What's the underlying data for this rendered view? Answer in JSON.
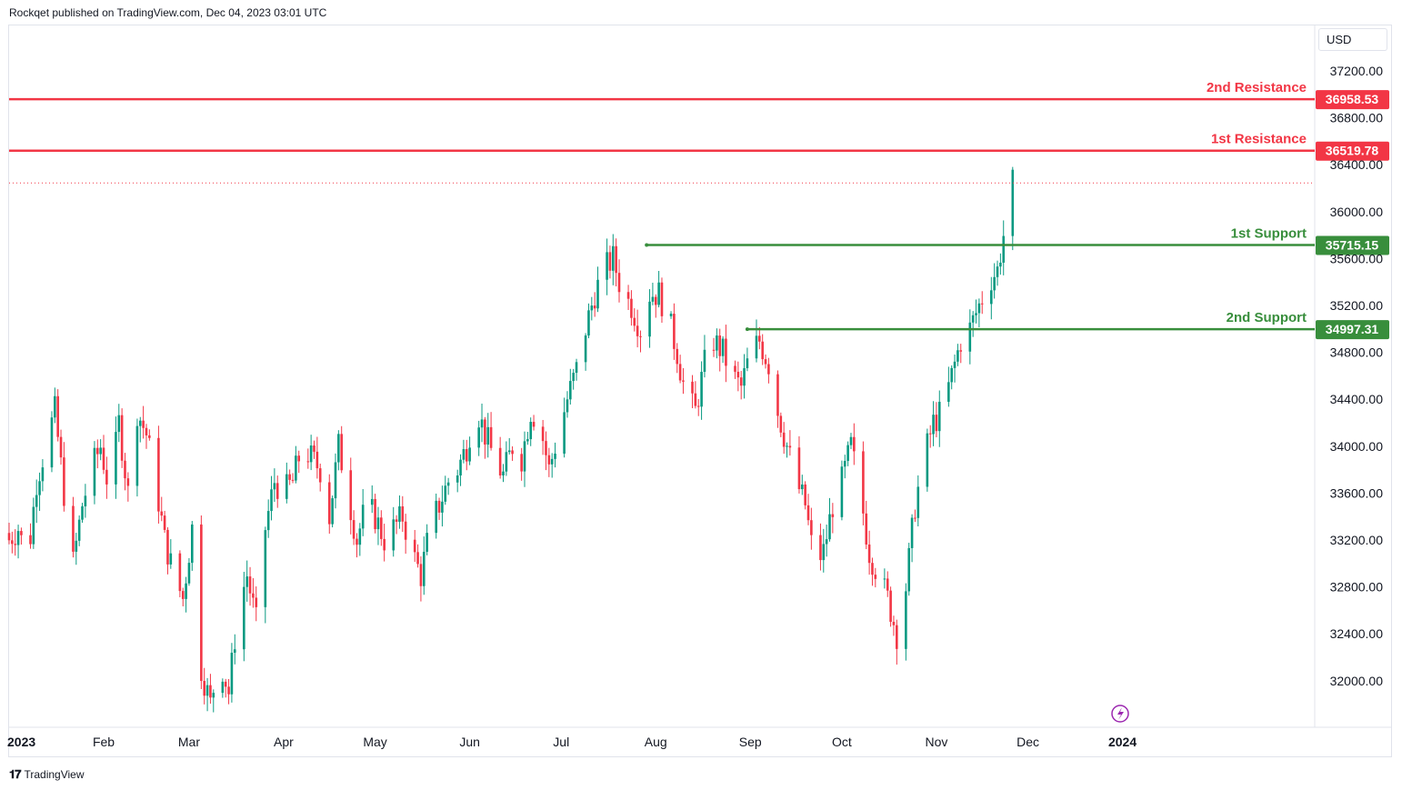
{
  "header": {
    "text": "Rockqet published on TradingView.com, Dec 04, 2023 03:01 UTC"
  },
  "footer": {
    "logo": "𝟏𝟕",
    "text": "TradingView"
  },
  "currency": "USD",
  "colors": {
    "up": "#089981",
    "down": "#f23645",
    "resistance": "#f23645",
    "support": "#388e3c",
    "last_price": "#f23645"
  },
  "chart_data": {
    "type": "candlestick",
    "y_ticks": [
      "37200.00",
      "36800.00",
      "36400.00",
      "36000.00",
      "35600.00",
      "35200.00",
      "34800.00",
      "34400.00",
      "34000.00",
      "33600.00",
      "33200.00",
      "32800.00",
      "32400.00",
      "32000.00"
    ],
    "ylim": [
      31650,
      37700
    ],
    "x_ticks": [
      {
        "label": "2023",
        "day": 0
      },
      {
        "label": "Feb",
        "day": 31
      },
      {
        "label": "Mar",
        "day": 59
      },
      {
        "label": "Apr",
        "day": 90
      },
      {
        "label": "May",
        "day": 120
      },
      {
        "label": "Jun",
        "day": 151
      },
      {
        "label": "Jul",
        "day": 181
      },
      {
        "label": "Aug",
        "day": 212
      },
      {
        "label": "Sep",
        "day": 243
      },
      {
        "label": "Oct",
        "day": 273
      },
      {
        "label": "Nov",
        "day": 304
      },
      {
        "label": "Dec",
        "day": 334
      },
      {
        "label": "2024",
        "day": 365
      }
    ],
    "levels": [
      {
        "name": "2nd Resistance",
        "value": 36958.53,
        "value_label": "36958.53",
        "kind": "resistance"
      },
      {
        "name": "1st Resistance",
        "value": 36519.78,
        "value_label": "36519.78",
        "kind": "resistance"
      },
      {
        "name": "1st Support",
        "value": 35715.15,
        "value_label": "35715.15",
        "kind": "support",
        "start_day": 209
      },
      {
        "name": "2nd Support",
        "value": 34997.31,
        "value_label": "34997.31",
        "kind": "support",
        "start_day": 242
      }
    ],
    "last_price": 36245,
    "anchors": [
      [
        0,
        33200
      ],
      [
        3,
        33300
      ],
      [
        6,
        33000
      ],
      [
        9,
        33700
      ],
      [
        12,
        34000
      ],
      [
        15,
        34300
      ],
      [
        18,
        33600
      ],
      [
        21,
        33000
      ],
      [
        24,
        33500
      ],
      [
        27,
        33800
      ],
      [
        30,
        34000
      ],
      [
        33,
        33600
      ],
      [
        36,
        34200
      ],
      [
        39,
        33600
      ],
      [
        42,
        34300
      ],
      [
        45,
        34100
      ],
      [
        48,
        33700
      ],
      [
        51,
        33200
      ],
      [
        54,
        32900
      ],
      [
        57,
        32700
      ],
      [
        60,
        33300
      ],
      [
        63,
        32100
      ],
      [
        66,
        31800
      ],
      [
        69,
        32200
      ],
      [
        72,
        31900
      ],
      [
        75,
        32600
      ],
      [
        78,
        32900
      ],
      [
        81,
        32500
      ],
      [
        84,
        33300
      ],
      [
        87,
        33700
      ],
      [
        90,
        33600
      ],
      [
        93,
        33700
      ],
      [
        96,
        34000
      ],
      [
        99,
        33900
      ],
      [
        102,
        33800
      ],
      [
        105,
        33400
      ],
      [
        108,
        34000
      ],
      [
        111,
        33600
      ],
      [
        114,
        33200
      ],
      [
        117,
        33500
      ],
      [
        120,
        33400
      ],
      [
        123,
        33200
      ],
      [
        126,
        33300
      ],
      [
        129,
        33400
      ],
      [
        132,
        33100
      ],
      [
        135,
        32900
      ],
      [
        138,
        33300
      ],
      [
        141,
        33500
      ],
      [
        144,
        33700
      ],
      [
        147,
        33800
      ],
      [
        150,
        34000
      ],
      [
        153,
        34350
      ],
      [
        156,
        34100
      ],
      [
        159,
        33900
      ],
      [
        162,
        33750
      ],
      [
        165,
        34000
      ],
      [
        168,
        33900
      ],
      [
        171,
        34300
      ],
      [
        174,
        34200
      ],
      [
        177,
        33800
      ],
      [
        180,
        34100
      ],
      [
        183,
        34400
      ],
      [
        186,
        34650
      ],
      [
        189,
        35000
      ],
      [
        192,
        35300
      ],
      [
        195,
        35500
      ],
      [
        198,
        35600
      ],
      [
        201,
        35300
      ],
      [
        204,
        35200
      ],
      [
        207,
        35000
      ],
      [
        210,
        35300
      ],
      [
        213,
        35300
      ],
      [
        216,
        35100
      ],
      [
        219,
        34800
      ],
      [
        222,
        34400
      ],
      [
        225,
        34300
      ],
      [
        228,
        34700
      ],
      [
        231,
        34900
      ],
      [
        234,
        34800
      ],
      [
        237,
        34600
      ],
      [
        240,
        34500
      ],
      [
        243,
        34800
      ],
      [
        246,
        34900
      ],
      [
        249,
        34700
      ],
      [
        252,
        34300
      ],
      [
        255,
        34000
      ],
      [
        258,
        33700
      ],
      [
        261,
        33500
      ],
      [
        264,
        33000
      ],
      [
        267,
        33100
      ],
      [
        270,
        33500
      ],
      [
        273,
        33700
      ],
      [
        276,
        34000
      ],
      [
        279,
        33600
      ],
      [
        282,
        33100
      ],
      [
        285,
        32900
      ],
      [
        288,
        32700
      ],
      [
        291,
        32400
      ],
      [
        294,
        32800
      ],
      [
        297,
        33500
      ],
      [
        300,
        33900
      ],
      [
        303,
        34200
      ],
      [
        306,
        34300
      ],
      [
        309,
        34600
      ],
      [
        312,
        34900
      ],
      [
        315,
        35000
      ],
      [
        318,
        35200
      ],
      [
        321,
        35400
      ],
      [
        324,
        35500
      ],
      [
        327,
        35950
      ],
      [
        329,
        36245
      ]
    ]
  }
}
